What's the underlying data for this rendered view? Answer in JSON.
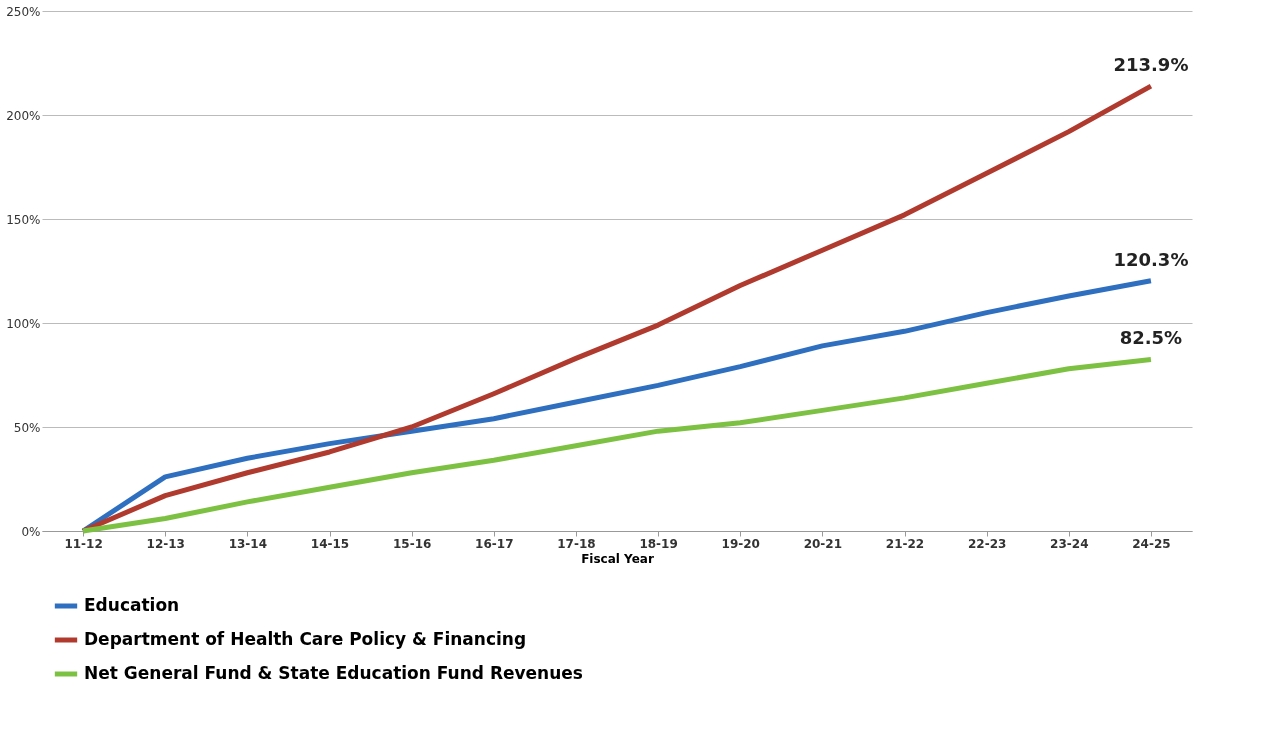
{
  "chart_data": {
    "type": "line",
    "xlabel": "Fiscal Year",
    "categories": [
      "11-12",
      "12-13",
      "13-14",
      "14-15",
      "15-16",
      "16-17",
      "17-18",
      "18-19",
      "19-20",
      "20-21",
      "21-22",
      "22-23",
      "23-24",
      "24-25"
    ],
    "series": [
      {
        "name": "Education",
        "color": "#2e6fc0",
        "values": [
          0,
          26,
          35,
          42,
          48,
          54,
          62,
          70,
          79,
          89,
          96,
          105,
          113,
          120.3
        ],
        "value_labels": [
          null,
          null,
          null,
          null,
          null,
          null,
          null,
          null,
          null,
          null,
          null,
          null,
          null,
          "120.3%"
        ]
      },
      {
        "name": "Department of Health Care Policy & Financing",
        "color": "#b03a2e",
        "values": [
          0,
          17,
          28,
          38,
          50,
          66,
          83,
          99,
          118,
          135,
          152,
          172,
          192,
          213.9
        ],
        "value_labels": [
          null,
          null,
          null,
          null,
          null,
          null,
          null,
          null,
          null,
          null,
          null,
          null,
          null,
          "213.9%"
        ]
      },
      {
        "name": "Net General Fund & State Education Fund Revenues",
        "color": "#7dc142",
        "values": [
          0,
          6,
          14,
          21,
          28,
          34,
          41,
          48,
          52,
          58,
          64,
          71,
          78,
          82.5
        ],
        "value_labels": [
          null,
          null,
          null,
          null,
          null,
          null,
          null,
          null,
          null,
          null,
          null,
          null,
          null,
          "82.5%"
        ]
      }
    ],
    "ylim": [
      0,
      250
    ],
    "yticks": [
      {
        "value": 0,
        "label": "0%"
      },
      {
        "value": 50,
        "label": "50%"
      },
      {
        "value": 100,
        "label": "100%"
      },
      {
        "value": 150,
        "label": "150%"
      },
      {
        "value": 200,
        "label": "200%"
      },
      {
        "value": 250,
        "label": "250%"
      }
    ],
    "grid": "y",
    "legend": "bottom",
    "marker": "none",
    "line_style": "solid"
  }
}
